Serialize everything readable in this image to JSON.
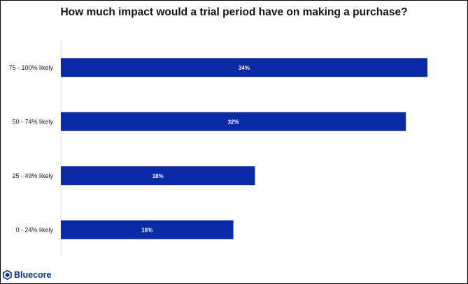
{
  "brand": {
    "name": "Bluecore",
    "color": "#0a2e8c",
    "icon": "bluecore-logo-icon"
  },
  "colors": {
    "bar": "#0a2aa8",
    "axis": "#dddddd",
    "bar_label": "#ffffff"
  },
  "chart_data": {
    "type": "bar",
    "orientation": "horizontal",
    "title": "How much impact would a trial period have on making a purchase?",
    "xlabel": "",
    "ylabel": "",
    "categories": [
      "75 - 100% likely",
      "50 - 74% likely",
      "25 - 49% likely",
      "0 - 24% likely"
    ],
    "values": [
      34,
      32,
      18,
      16
    ],
    "data_labels": [
      "34%",
      "32%",
      "18%",
      "16%"
    ],
    "xlim": [
      0,
      34
    ],
    "grid": false,
    "legend": "none"
  }
}
